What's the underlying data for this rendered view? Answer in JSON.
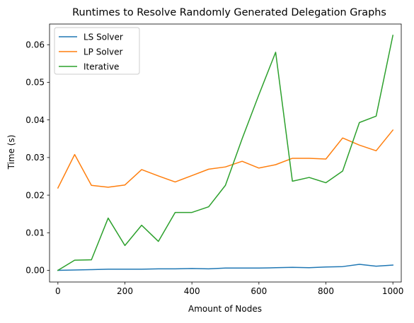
{
  "chart_data": {
    "type": "line",
    "title": "Runtimes to Resolve Randomly Generated Delegation Graphs",
    "xlabel": "Amount of Nodes",
    "ylabel": "Time (s)",
    "xlim": [
      -25,
      1025
    ],
    "ylim": [
      -0.0031,
      0.0655
    ],
    "xticks": [
      0,
      200,
      400,
      600,
      800,
      1000
    ],
    "xtick_labels": [
      "0",
      "200",
      "400",
      "600",
      "800",
      "1000"
    ],
    "yticks": [
      0.0,
      0.01,
      0.02,
      0.03,
      0.04,
      0.05,
      0.06
    ],
    "ytick_labels": [
      "0.00",
      "0.01",
      "0.02",
      "0.03",
      "0.04",
      "0.05",
      "0.06"
    ],
    "grid": false,
    "legend_position": "upper-left",
    "x": [
      0,
      50,
      100,
      150,
      200,
      250,
      300,
      350,
      400,
      450,
      500,
      550,
      600,
      650,
      700,
      750,
      800,
      850,
      900,
      950,
      1000
    ],
    "series": [
      {
        "name": "LS Solver",
        "color": "#1f77b4",
        "values": [
          0.0,
          0.0001,
          0.0002,
          0.0003,
          0.0003,
          0.0003,
          0.0004,
          0.0004,
          0.0005,
          0.0004,
          0.0006,
          0.0006,
          0.0006,
          0.0007,
          0.0008,
          0.0007,
          0.0009,
          0.001,
          0.0016,
          0.0011,
          0.0014
        ]
      },
      {
        "name": "LP Solver",
        "color": "#ff7f0e",
        "values": [
          0.0219,
          0.0308,
          0.0226,
          0.0221,
          0.0227,
          0.0268,
          0.0251,
          0.0235,
          0.0252,
          0.0269,
          0.0275,
          0.029,
          0.0272,
          0.0281,
          0.0298,
          0.0298,
          0.0296,
          0.0352,
          0.0333,
          0.0318,
          0.0373
        ]
      },
      {
        "name": "Iterative",
        "color": "#2ca02c",
        "values": [
          0.0,
          0.0027,
          0.0028,
          0.0139,
          0.0066,
          0.012,
          0.0077,
          0.0154,
          0.0154,
          0.0169,
          0.0226,
          0.035,
          0.0467,
          0.058,
          0.0237,
          0.0247,
          0.0233,
          0.0264,
          0.0393,
          0.041,
          0.0625
        ]
      }
    ]
  }
}
